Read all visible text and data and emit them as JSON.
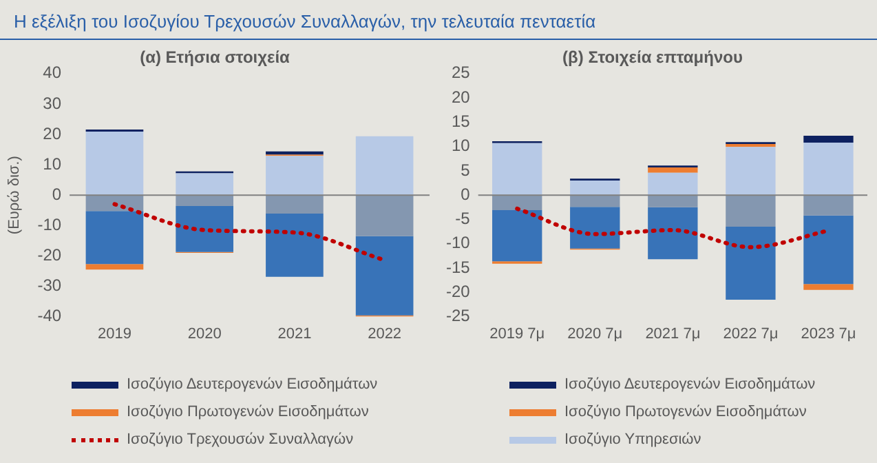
{
  "chart_data": [
    {
      "type": "bar",
      "title": "Η εξέλιξη του Ισοζυγίου Τρεχουσών Συναλλαγών, την τελευταία πενταετία",
      "subtitle": "(α) Ετήσια στοιχεία",
      "ylabel": "(Ευρώ δισ.)",
      "stacked": true,
      "categories": [
        "2019",
        "2020",
        "2021",
        "2022"
      ],
      "ylim": [
        -40,
        40
      ],
      "yticks": [
        -40,
        -30,
        -20,
        -10,
        0,
        10,
        20,
        30,
        40
      ],
      "grid": false,
      "ref_lines": [
        {
          "axis": "y",
          "value": 0,
          "color": "#808080"
        }
      ],
      "legend": "bottom",
      "series": [
        {
          "color": "#8497b0",
          "values": [
            -5.2,
            -3.6,
            -6.1,
            -13.5
          ]
        },
        {
          "color": "#3873b8",
          "values": [
            -17.5,
            -15.1,
            -20.8,
            -26.1
          ]
        },
        {
          "color": "#b7c9e6",
          "values": [
            20.9,
            7.2,
            12.9,
            19.4
          ]
        },
        {
          "name": "Ισοζύγιο Πρωτογενών Εισοδημάτων",
          "color": "#ed7d31",
          "values": [
            -1.8,
            -0.3,
            0.4,
            -0.4
          ]
        },
        {
          "name": "Ισοζύγιο Δευτερογενών Εισοδημάτων",
          "color": "#0d2160",
          "values": [
            0.7,
            0.6,
            1.1,
            null
          ]
        },
        {
          "name": "Ισοζύγιο Τρεχουσών Συναλλαγών",
          "type": "line",
          "line_style": "dotted",
          "marker": "none",
          "color": "#c00000",
          "values": [
            -3,
            -11.5,
            -12.3,
            -21.4
          ]
        }
      ]
    },
    {
      "type": "bar",
      "subtitle": "(β) Στοιχεία επταμήνου",
      "stacked": true,
      "categories": [
        "2019 7μ",
        "2020 7μ",
        "2021 7μ",
        "2022 7μ",
        "2023 7μ"
      ],
      "ylim": [
        -25,
        25
      ],
      "yticks": [
        -25,
        -20,
        -15,
        -10,
        -5,
        0,
        5,
        10,
        15,
        20,
        25
      ],
      "grid": false,
      "ref_lines": [
        {
          "axis": "y",
          "value": 0,
          "color": "#808080"
        }
      ],
      "legend": "bottom",
      "series": [
        {
          "color": "#8497b0",
          "values": [
            -3.1,
            -2.4,
            -2.5,
            -6.5,
            -4.2
          ]
        },
        {
          "color": "#3873b8",
          "values": [
            -10.5,
            -8.6,
            -10.7,
            -15.0,
            -14.1
          ]
        },
        {
          "name": "Ισοζύγιο Υπηρεσιών",
          "color": "#b7c9e6",
          "values": [
            10.7,
            3.0,
            4.6,
            9.9,
            10.8
          ]
        },
        {
          "name": "Ισοζύγιο Πρωτογενών Εισοδημάτων",
          "color": "#ed7d31",
          "values": [
            -0.5,
            -0.2,
            1.1,
            0.6,
            -1.2
          ]
        },
        {
          "name": "Ισοζύγιο Δευτερογενών Εισοδημάτων",
          "color": "#0d2160",
          "values": [
            0.4,
            0.4,
            0.4,
            0.4,
            1.4
          ]
        },
        {
          "type": "line",
          "line_style": "dotted",
          "marker": "none",
          "color": "#c00000",
          "values": [
            -2.8,
            -8.0,
            -7.2,
            -10.7,
            -7.3
          ]
        }
      ]
    }
  ]
}
